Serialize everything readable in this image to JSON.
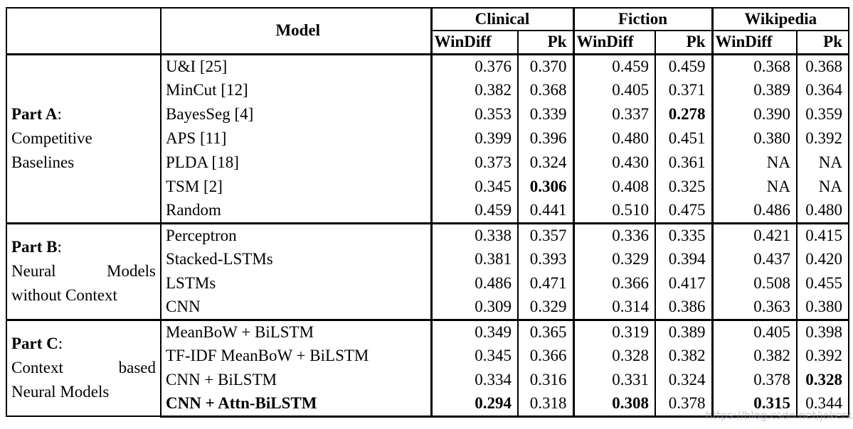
{
  "watermark": "https://blog.csdn.net/jokerxsy",
  "table": {
    "model_header": "Model",
    "groups": [
      {
        "name": "Clinical",
        "cols": [
          "WinDiff",
          "Pk"
        ]
      },
      {
        "name": "Fiction",
        "cols": [
          "WinDiff",
          "Pk"
        ]
      },
      {
        "name": "Wikipedia",
        "cols": [
          "WinDiff",
          "Pk"
        ]
      }
    ],
    "parts": [
      {
        "label": {
          "title": "Part A",
          "suffix": ":",
          "lines": [
            [
              "Competitive"
            ],
            [
              "Baselines"
            ]
          ]
        },
        "rows": [
          {
            "model": "U&I [25]",
            "cells": [
              {
                "v": "0.376"
              },
              {
                "v": "0.370"
              },
              {
                "v": "0.459"
              },
              {
                "v": "0.459"
              },
              {
                "v": "0.368"
              },
              {
                "v": "0.368"
              }
            ]
          },
          {
            "model": "MinCut [12]",
            "cells": [
              {
                "v": "0.382"
              },
              {
                "v": "0.368"
              },
              {
                "v": "0.405"
              },
              {
                "v": "0.371"
              },
              {
                "v": "0.389"
              },
              {
                "v": "0.364"
              }
            ]
          },
          {
            "model": "BayesSeg [4]",
            "cells": [
              {
                "v": "0.353"
              },
              {
                "v": "0.339"
              },
              {
                "v": "0.337"
              },
              {
                "v": "0.278",
                "b": true
              },
              {
                "v": "0.390"
              },
              {
                "v": "0.359"
              }
            ]
          },
          {
            "model": "APS [11]",
            "cells": [
              {
                "v": "0.399"
              },
              {
                "v": "0.396"
              },
              {
                "v": "0.480"
              },
              {
                "v": "0.451"
              },
              {
                "v": "0.380"
              },
              {
                "v": "0.392"
              }
            ]
          },
          {
            "model": "PLDA [18]",
            "cells": [
              {
                "v": "0.373"
              },
              {
                "v": "0.324"
              },
              {
                "v": "0.430"
              },
              {
                "v": "0.361"
              },
              {
                "v": "NA"
              },
              {
                "v": "NA"
              }
            ]
          },
          {
            "model": "TSM [2]",
            "cells": [
              {
                "v": "0.345"
              },
              {
                "v": "0.306",
                "b": true
              },
              {
                "v": "0.408"
              },
              {
                "v": "0.325"
              },
              {
                "v": "NA"
              },
              {
                "v": "NA"
              }
            ]
          },
          {
            "model": "Random",
            "cells": [
              {
                "v": "0.459"
              },
              {
                "v": "0.441"
              },
              {
                "v": "0.510"
              },
              {
                "v": "0.475"
              },
              {
                "v": "0.486"
              },
              {
                "v": "0.480"
              }
            ]
          }
        ]
      },
      {
        "label": {
          "title": "Part B",
          "suffix": ":",
          "lines": [
            [
              "Neural",
              "Models"
            ],
            [
              "without Context"
            ]
          ]
        },
        "rows": [
          {
            "model": "Perceptron",
            "cells": [
              {
                "v": "0.338"
              },
              {
                "v": "0.357"
              },
              {
                "v": "0.336"
              },
              {
                "v": "0.335"
              },
              {
                "v": "0.421"
              },
              {
                "v": "0.415"
              }
            ]
          },
          {
            "model": "Stacked-LSTMs",
            "cells": [
              {
                "v": "0.381"
              },
              {
                "v": "0.393"
              },
              {
                "v": "0.329"
              },
              {
                "v": "0.394"
              },
              {
                "v": "0.437"
              },
              {
                "v": "0.420"
              }
            ]
          },
          {
            "model": "LSTMs",
            "cells": [
              {
                "v": "0.486"
              },
              {
                "v": "0.471"
              },
              {
                "v": "0.366"
              },
              {
                "v": "0.417"
              },
              {
                "v": "0.508"
              },
              {
                "v": "0.455"
              }
            ]
          },
          {
            "model": "CNN",
            "cells": [
              {
                "v": "0.309"
              },
              {
                "v": "0.329"
              },
              {
                "v": "0.314"
              },
              {
                "v": "0.386"
              },
              {
                "v": "0.363"
              },
              {
                "v": "0.380"
              }
            ]
          }
        ]
      },
      {
        "label": {
          "title": "Part C",
          "suffix": ":",
          "lines": [
            [
              "Context",
              "based"
            ],
            [
              "Neural Models"
            ]
          ]
        },
        "rows": [
          {
            "model": "MeanBoW + BiLSTM",
            "cells": [
              {
                "v": "0.349"
              },
              {
                "v": "0.365"
              },
              {
                "v": "0.319"
              },
              {
                "v": "0.389"
              },
              {
                "v": "0.405"
              },
              {
                "v": "0.398"
              }
            ]
          },
          {
            "model": "TF-IDF MeanBoW + BiLSTM",
            "cells": [
              {
                "v": "0.345"
              },
              {
                "v": "0.366"
              },
              {
                "v": "0.328"
              },
              {
                "v": "0.382"
              },
              {
                "v": "0.382"
              },
              {
                "v": "0.392"
              }
            ]
          },
          {
            "model": "CNN + BiLSTM",
            "cells": [
              {
                "v": "0.334"
              },
              {
                "v": "0.316"
              },
              {
                "v": "0.331"
              },
              {
                "v": "0.324"
              },
              {
                "v": "0.378"
              },
              {
                "v": "0.328",
                "b": true
              }
            ]
          },
          {
            "model": "CNN + Attn-BiLSTM",
            "model_bold": true,
            "cells": [
              {
                "v": "0.294",
                "b": true
              },
              {
                "v": "0.318"
              },
              {
                "v": "0.308",
                "b": true
              },
              {
                "v": "0.378"
              },
              {
                "v": "0.315",
                "b": true
              },
              {
                "v": "0.344"
              }
            ]
          }
        ]
      }
    ]
  }
}
